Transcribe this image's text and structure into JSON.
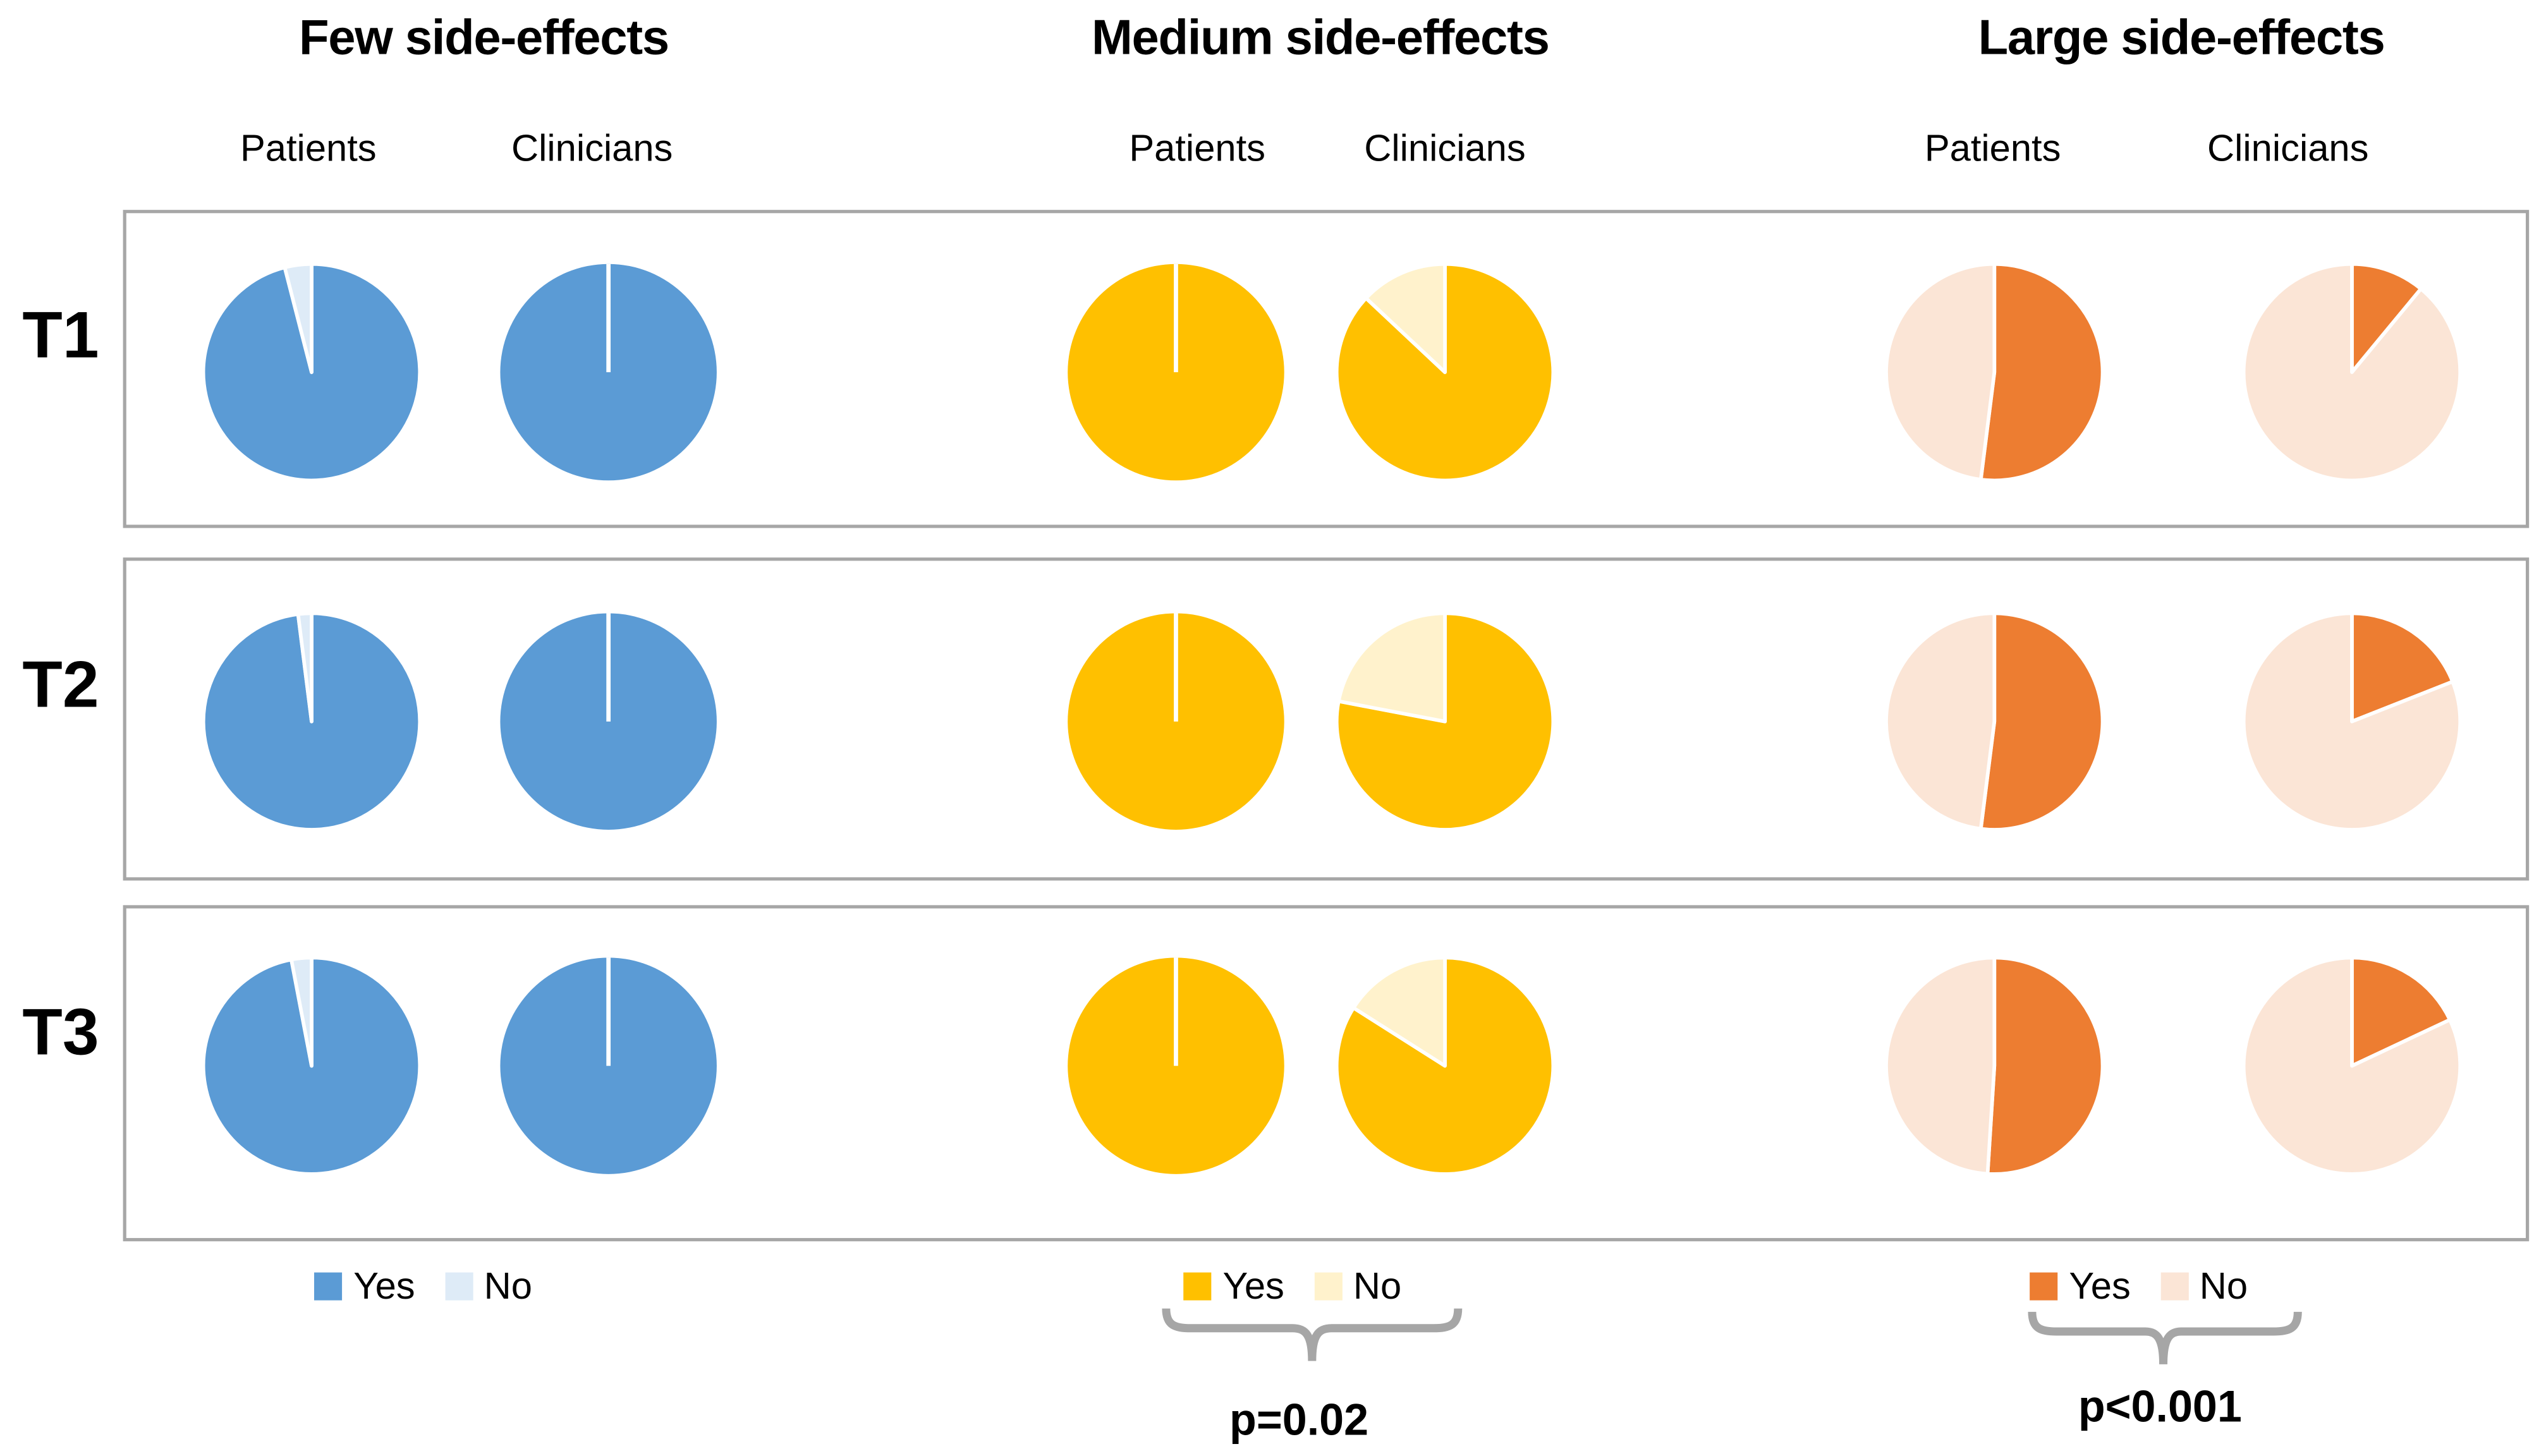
{
  "chart_data": {
    "type": "pie",
    "description": "Grid of pie charts: proportion answering Yes/No, by side-effect severity (Few, Medium, Large), respondent group (Patients, Clinicians) and time point (T1, T2, T3). Values are percent Yes, estimated from slice angles.",
    "rows": [
      "T1",
      "T2",
      "T3"
    ],
    "legend_labels": [
      "Yes",
      "No"
    ],
    "groups": [
      {
        "id": "few",
        "title": "Few side-effects",
        "colors": {
          "yes": "#5B9BD5",
          "no": "#DEEBF7"
        },
        "columns": [
          {
            "label": "Patients",
            "yes_pct": [
              96,
              98,
              97
            ],
            "no_pct": [
              4,
              2,
              3
            ]
          },
          {
            "label": "Clinicians",
            "yes_pct": [
              100,
              100,
              100
            ],
            "no_pct": [
              0,
              0,
              0
            ]
          }
        ],
        "p_label": ""
      },
      {
        "id": "medium",
        "title": "Medium side-effects",
        "colors": {
          "yes": "#FFC000",
          "no": "#FFF2CC"
        },
        "columns": [
          {
            "label": "Patients",
            "yes_pct": [
              100,
              100,
              100
            ],
            "no_pct": [
              0,
              0,
              0
            ]
          },
          {
            "label": "Clinicians",
            "yes_pct": [
              87,
              78,
              84
            ],
            "no_pct": [
              13,
              22,
              16
            ]
          }
        ],
        "p_label": "p=0.02"
      },
      {
        "id": "large",
        "title": "Large side-effects",
        "colors": {
          "yes": "#ED7D31",
          "no": "#FBE5D6"
        },
        "columns": [
          {
            "label": "Patients",
            "yes_pct": [
              52,
              52,
              51
            ],
            "no_pct": [
              48,
              48,
              49
            ]
          },
          {
            "label": "Clinicians",
            "yes_pct": [
              11,
              19,
              18
            ],
            "no_pct": [
              89,
              81,
              82
            ]
          }
        ],
        "p_label": "p<0.001"
      }
    ]
  }
}
